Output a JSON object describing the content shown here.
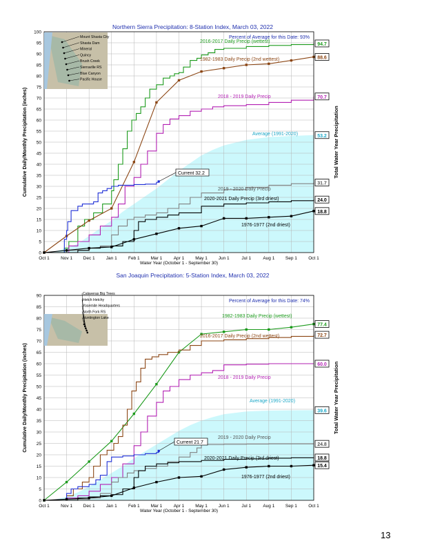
{
  "page_number": "13",
  "chart_data": [
    {
      "type": "line",
      "title": "Northern Sierra Precipitation: 8-Station Index, March 03, 2022",
      "annotation": "Percent of Average for this Date: 93%",
      "xlabel": "Water Year (October 1 - September 30)",
      "ylabel": "Cumulative Daily/Monthly Precipitation (inches)",
      "y2label": "Total Water Year Precipitation",
      "categories": [
        "Oct 1",
        "Nov 1",
        "Dec 1",
        "Jan 1",
        "Feb 1",
        "Mar 1",
        "Apr 1",
        "May 1",
        "Jun 1",
        "Jul 1",
        "Aug 1",
        "Sep 1",
        "Oct 1"
      ],
      "ylim": [
        0,
        100
      ],
      "yticks": [
        0,
        5,
        10,
        15,
        20,
        25,
        30,
        35,
        40,
        45,
        50,
        55,
        60,
        65,
        70,
        75,
        80,
        85,
        90,
        95,
        100
      ],
      "grid": true,
      "stations": [
        "Mount Shasta City",
        "Shasta Dam",
        "Mineral",
        "Quincy",
        "Brush Creek",
        "Sierraville RS",
        "Blue Canyon",
        "Pacific House"
      ],
      "series": [
        {
          "name": "Average (1991-2020)",
          "style": "area",
          "color": "#ccf8fc",
          "end_label": "53.2",
          "label_color": "#1aa7c7",
          "x": [
            0,
            0.5,
            1,
            1.5,
            2,
            2.5,
            3,
            3.5,
            4,
            4.5,
            5,
            5.5,
            6,
            6.5,
            7,
            7.5,
            8,
            9,
            10,
            11,
            12
          ],
          "y": [
            0,
            0.6,
            2,
            4,
            7.5,
            11,
            14.5,
            18.5,
            22,
            25.5,
            29,
            33,
            37,
            40.5,
            44,
            46.5,
            48.5,
            51,
            52.3,
            52.8,
            53.2
          ]
        },
        {
          "name": "2016-2017 Daily Precip (wettest)",
          "style": "step",
          "color": "#1b9a1b",
          "end_label": "94.7",
          "label_color": "#1b9a1b",
          "x": [
            0,
            0.6,
            0.9,
            1.1,
            1.5,
            1.8,
            2.2,
            2.6,
            3.0,
            3.1,
            3.3,
            3.5,
            3.7,
            3.9,
            4.1,
            4.3,
            4.5,
            4.7,
            5,
            5.3,
            5.6,
            5.8,
            6,
            6.2,
            6.5,
            6.8,
            7,
            7.3,
            7.6,
            8,
            9,
            10,
            11,
            12
          ],
          "y": [
            0,
            0,
            2,
            5,
            12,
            15,
            18,
            22,
            28,
            33,
            40,
            47,
            55,
            60,
            63,
            66,
            70,
            74,
            76,
            79,
            80,
            81,
            81.5,
            84,
            87,
            88,
            89.5,
            90.5,
            92,
            92.5,
            93.3,
            93.8,
            94.2,
            94.7
          ]
        },
        {
          "name": "1982-1983 Daily Precip (2nd wettest)",
          "style": "line-marker",
          "color": "#8b4513",
          "end_label": "88.6",
          "label_color": "#8b4513",
          "x": [
            0,
            1,
            2,
            3,
            4,
            5,
            6,
            7,
            8,
            9,
            10,
            11,
            12
          ],
          "y": [
            0,
            7.5,
            14.5,
            20,
            41,
            68,
            78,
            82,
            83.5,
            85,
            85.5,
            87,
            88.6
          ]
        },
        {
          "name": "2018 - 2019 Daily Precip",
          "style": "step",
          "color": "#b21fb2",
          "end_label": "70.7",
          "label_color": "#b21fb2",
          "x": [
            0,
            0.9,
            1.1,
            1.5,
            2,
            2.5,
            3,
            3.3,
            3.6,
            4,
            4.3,
            4.6,
            5,
            5.3,
            5.6,
            6,
            6.5,
            7,
            7.5,
            8,
            9,
            10,
            11,
            12
          ],
          "y": [
            0,
            0,
            3,
            5,
            8,
            12,
            16,
            22,
            30,
            34,
            40,
            46,
            54,
            58,
            60.5,
            62,
            64,
            65,
            66,
            66.5,
            67,
            68,
            69,
            70.7
          ]
        },
        {
          "name": "Current",
          "style": "step",
          "color": "#1d2ed6",
          "end_label": "32.2",
          "label_color": "#000000",
          "end_x": 5.1,
          "x": [
            0,
            0.7,
            0.9,
            1.0,
            1.05,
            1.2,
            1.5,
            1.7,
            2.2,
            2.4,
            2.6,
            2.8,
            3.0,
            3.3,
            4,
            4.5,
            5.0,
            5.1
          ],
          "y": [
            0,
            0,
            6,
            10,
            14,
            19,
            21,
            22,
            23,
            27,
            28,
            29,
            30,
            30.5,
            30.8,
            31,
            31.8,
            32.2
          ]
        },
        {
          "name": "2019 - 2020 Daily Precip",
          "style": "step",
          "color": "#808080",
          "end_label": "31.7",
          "label_color": "#555555",
          "x": [
            0,
            1,
            2,
            2.5,
            3,
            3.3,
            3.7,
            4,
            4.5,
            5,
            5.5,
            6,
            6.5,
            7,
            8,
            9,
            10,
            11,
            12
          ],
          "y": [
            0,
            1,
            2,
            3,
            8,
            12,
            15,
            16,
            17,
            18,
            20,
            22,
            25,
            27,
            28.5,
            29.5,
            30.5,
            31.2,
            31.7
          ]
        },
        {
          "name": "2020-2021 Daily Precip (3rd driest)",
          "style": "step",
          "color": "#000000",
          "end_label": "24.0",
          "label_color": "#000000",
          "x": [
            0,
            1.5,
            2,
            2.5,
            3,
            3.5,
            4,
            4.2,
            4.5,
            5,
            5.5,
            6,
            7,
            8,
            9,
            10,
            11,
            12
          ],
          "y": [
            0,
            1,
            2,
            2.5,
            3,
            5,
            10,
            14,
            15,
            16,
            17,
            18,
            21,
            22,
            22.5,
            23,
            23.5,
            24
          ]
        },
        {
          "name": "1976-1977 (2nd driest)",
          "style": "line-marker",
          "color": "#000000",
          "end_label": "18.8",
          "label_color": "#000000",
          "x": [
            0,
            1,
            2,
            3,
            4,
            5,
            6,
            7,
            8,
            9,
            10,
            11,
            12
          ],
          "y": [
            0,
            1,
            2,
            2.5,
            6,
            8.5,
            11,
            12,
            15.5,
            15.5,
            16,
            16.5,
            18.8
          ]
        }
      ]
    },
    {
      "type": "line",
      "title": "San Joaquin Precipitation: 5-Station Index, March 03, 2022",
      "annotation": "Percent of Average for this Date: 74%",
      "xlabel": "Water Year (October 1 - September 30)",
      "ylabel": "Cumulative Daily/Monthly Precipitation (inches)",
      "y2label": "Total Water Year Precipitation",
      "categories": [
        "Oct 1",
        "Nov 1",
        "Dec 1",
        "Jan 1",
        "Feb 1",
        "Mar 1",
        "Apr 1",
        "May 1",
        "Jun 1",
        "Jul 1",
        "Aug 1",
        "Sep 1",
        "Oct 1"
      ],
      "ylim": [
        0,
        90
      ],
      "yticks": [
        0,
        5,
        10,
        15,
        20,
        25,
        30,
        35,
        40,
        45,
        50,
        55,
        60,
        65,
        70,
        75,
        80,
        85,
        90
      ],
      "grid": true,
      "stations": [
        "Calaveras Big Trees",
        "Hetch Hetchy",
        "Yosemite Headquarters",
        "North Fork RS",
        "Huntington Lake"
      ],
      "series": [
        {
          "name": "Average (1991-2020)",
          "style": "area",
          "color": "#ccf8fc",
          "end_label": "39.6",
          "label_color": "#1aa7c7",
          "x": [
            0,
            0.5,
            1,
            1.5,
            2,
            2.5,
            3,
            3.5,
            4,
            4.5,
            5,
            5.5,
            6,
            6.5,
            7,
            7.5,
            8,
            9,
            10,
            11,
            12
          ],
          "y": [
            0,
            0.4,
            1.5,
            3.5,
            6,
            9,
            12,
            15,
            18.5,
            21.5,
            24.5,
            27.5,
            30.5,
            33,
            35,
            36.5,
            37.8,
            39,
            39.4,
            39.5,
            39.6
          ]
        },
        {
          "name": "1982-1983 Daily Precip (wettest)",
          "style": "line-marker",
          "color": "#1b9a1b",
          "end_label": "77.4",
          "label_color": "#1b9a1b",
          "x": [
            0,
            1,
            2,
            3,
            4,
            5,
            6,
            7,
            8,
            9,
            10,
            11,
            12
          ],
          "y": [
            0,
            8,
            17,
            26,
            38,
            51,
            65,
            73,
            74,
            75,
            75,
            76,
            77.4
          ]
        },
        {
          "name": "2016-2017 Daily Precip (2nd wettest)",
          "style": "step",
          "color": "#8b4513",
          "end_label": "72.7",
          "label_color": "#8b4513",
          "x": [
            0,
            0.7,
            1,
            1.3,
            1.7,
            2,
            2.2,
            2.5,
            2.8,
            3.1,
            3.3,
            3.5,
            3.7,
            3.9,
            4.1,
            4.3,
            4.5,
            4.8,
            5.1,
            5.5,
            6,
            6.5,
            7,
            8,
            9,
            10,
            11,
            12
          ],
          "y": [
            0,
            0,
            2,
            5,
            8,
            10,
            15,
            20,
            22,
            25,
            28,
            33,
            40,
            48,
            52,
            58,
            62,
            63,
            64,
            65,
            66,
            68,
            70,
            70.5,
            71,
            71.5,
            72,
            72.7
          ]
        },
        {
          "name": "2018 - 2019 Daily Precip",
          "style": "step",
          "color": "#b21fb2",
          "end_label": "60.0",
          "label_color": "#b21fb2",
          "x": [
            0,
            1,
            1.5,
            2,
            2.5,
            3,
            3.5,
            4,
            4.3,
            4.6,
            5,
            5.3,
            5.6,
            6,
            6.5,
            7,
            7.5,
            8,
            9,
            10,
            11,
            12
          ],
          "y": [
            0,
            1,
            2,
            4,
            7,
            10,
            16,
            24,
            30,
            37,
            43,
            48,
            50,
            53,
            55,
            56,
            57,
            59.5,
            59.8,
            60,
            60,
            60
          ]
        },
        {
          "name": "Current",
          "style": "step",
          "color": "#1d2ed6",
          "end_label": "21.7",
          "label_color": "#000000",
          "end_x": 5.1,
          "x": [
            0,
            0.7,
            1.0,
            1.2,
            1.5,
            2.0,
            2.3,
            2.5,
            2.8,
            3.0,
            3.5,
            4,
            4.5,
            5.0,
            5.1
          ],
          "y": [
            0,
            0,
            3,
            5,
            6,
            7,
            9,
            11,
            17,
            19,
            19.5,
            20,
            20.5,
            21,
            21.7
          ]
        },
        {
          "name": "2019 - 2020 Daily Precip",
          "style": "step",
          "color": "#808080",
          "end_label": "24.8",
          "label_color": "#555555",
          "x": [
            0,
            1,
            2,
            2.5,
            3,
            3.3,
            3.7,
            4,
            4.5,
            5,
            5.5,
            6,
            6.5,
            6.8,
            7,
            8,
            9,
            10,
            11,
            12
          ],
          "y": [
            0,
            0.5,
            1,
            3,
            8,
            10,
            12,
            13,
            14,
            15,
            17,
            19,
            21,
            23,
            24.5,
            24.6,
            24.7,
            24.8,
            24.8,
            24.8
          ]
        },
        {
          "name": "2020-2021 Daily Precip (3rd driest)",
          "style": "step",
          "color": "#000000",
          "end_label": "18.8",
          "label_color": "#000000",
          "x": [
            0,
            1.5,
            2,
            2.5,
            3,
            3.5,
            4,
            4.2,
            4.5,
            5,
            5.5,
            6,
            7,
            8,
            9,
            10,
            11,
            12
          ],
          "y": [
            0,
            1,
            1.5,
            2,
            2.5,
            5,
            10,
            13,
            15,
            16,
            16.5,
            17,
            17.5,
            18,
            18.2,
            18.5,
            18.7,
            18.8
          ]
        },
        {
          "name": "1976-1977 (2nd driest)",
          "style": "line-marker",
          "color": "#000000",
          "end_label": "15.4",
          "label_color": "#000000",
          "x": [
            0,
            1,
            2,
            3,
            4,
            5,
            6,
            7,
            8,
            9,
            10,
            11,
            12
          ],
          "y": [
            0,
            0.5,
            1,
            2,
            5.5,
            8,
            10,
            10.5,
            13.5,
            14.5,
            15,
            15,
            15.4
          ]
        }
      ]
    }
  ]
}
